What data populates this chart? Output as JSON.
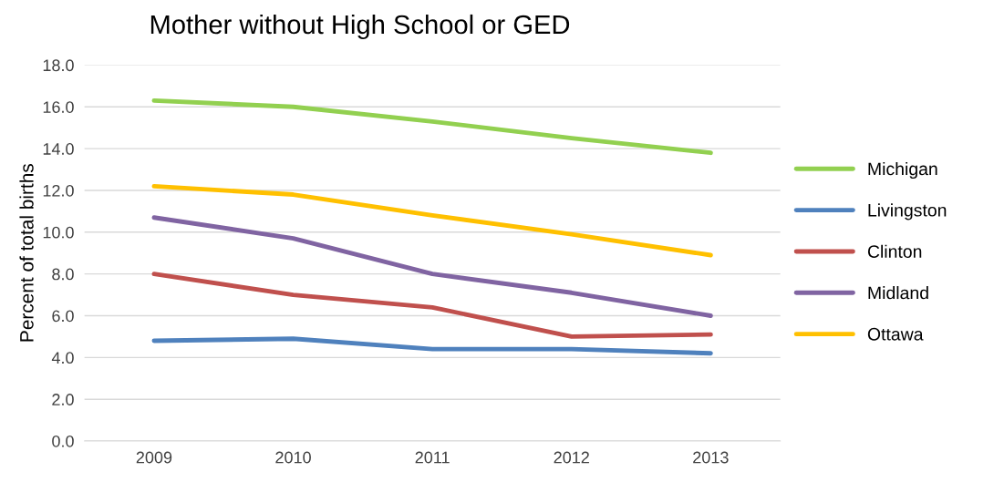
{
  "chart_data": {
    "type": "line",
    "title": "Mother without High School or GED",
    "ylabel": "Percent of total births",
    "categories": [
      "2009",
      "2010",
      "2011",
      "2012",
      "2013"
    ],
    "series": [
      {
        "name": "Michigan",
        "color": "#92d050",
        "values": [
          16.3,
          16.0,
          15.3,
          14.5,
          13.8
        ]
      },
      {
        "name": "Livingston",
        "color": "#4f81bd",
        "values": [
          4.8,
          4.9,
          4.4,
          4.4,
          4.2
        ]
      },
      {
        "name": "Clinton",
        "color": "#c0504d",
        "values": [
          8.0,
          7.0,
          6.4,
          5.0,
          5.1
        ]
      },
      {
        "name": "Midland",
        "color": "#8064a2",
        "values": [
          10.7,
          9.7,
          8.0,
          7.1,
          6.0
        ]
      },
      {
        "name": "Ottawa",
        "color": "#ffc000",
        "values": [
          12.2,
          11.8,
          10.8,
          9.9,
          8.9
        ]
      }
    ],
    "ylim": [
      0,
      18
    ],
    "yticks": [
      {
        "value": 0,
        "label": "0.0"
      },
      {
        "value": 2,
        "label": "2.0"
      },
      {
        "value": 4,
        "label": "4.0"
      },
      {
        "value": 6,
        "label": "6.0"
      },
      {
        "value": 8,
        "label": "8.0"
      },
      {
        "value": 10,
        "label": "10.0"
      },
      {
        "value": 12,
        "label": "12.0"
      },
      {
        "value": 14,
        "label": "14.0"
      },
      {
        "value": 16,
        "label": "16.0"
      },
      {
        "value": 18,
        "label": "18.0"
      }
    ],
    "grid": "y",
    "legend": "right",
    "marker": "none",
    "line_style": "solid"
  }
}
